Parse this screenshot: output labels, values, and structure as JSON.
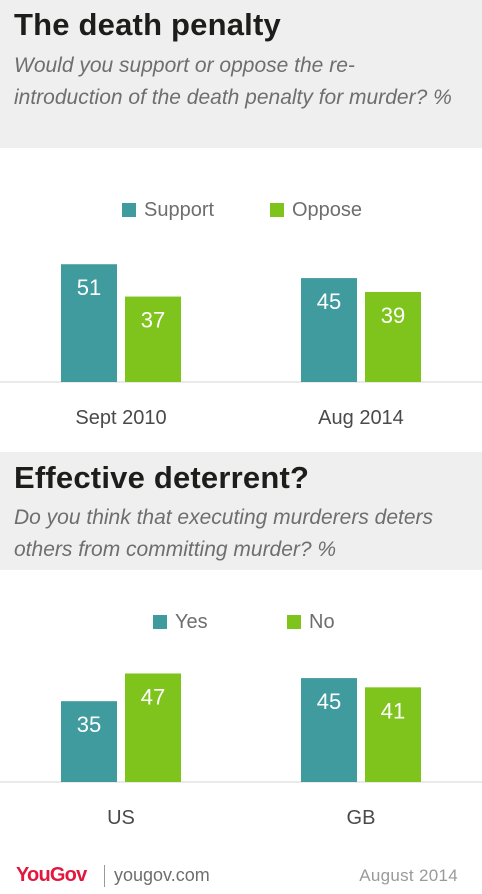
{
  "colors": {
    "primary": "#3f9b9e",
    "secondary": "#7fc41c",
    "header_bg": "#efefef"
  },
  "section1": {
    "title": "The death penalty",
    "subtitle": "Would you support or oppose the re-introduction of the death penalty for murder? %"
  },
  "section2": {
    "title": "Effective deterrent?",
    "subtitle": "Do you think that executing murderers deters others from committing murder? %"
  },
  "chart_data": [
    {
      "type": "bar",
      "categories": [
        "Sept 2010",
        "Aug 2014"
      ],
      "series": [
        {
          "name": "Support",
          "values": [
            51,
            45
          ],
          "color": "#3f9b9e"
        },
        {
          "name": "Oppose",
          "values": [
            37,
            39
          ],
          "color": "#7fc41c"
        }
      ],
      "ylim": [
        0,
        55
      ],
      "grid": false,
      "legend": "top-center"
    },
    {
      "type": "bar",
      "categories": [
        "US",
        "GB"
      ],
      "series": [
        {
          "name": "Yes",
          "values": [
            35,
            45
          ],
          "color": "#3f9b9e"
        },
        {
          "name": "No",
          "values": [
            47,
            41
          ],
          "color": "#7fc41c"
        }
      ],
      "ylim": [
        0,
        55
      ],
      "grid": false,
      "legend": "top-center"
    }
  ],
  "footer": {
    "brand": "YouGov",
    "site": "yougov.com",
    "date": "August 2014"
  }
}
